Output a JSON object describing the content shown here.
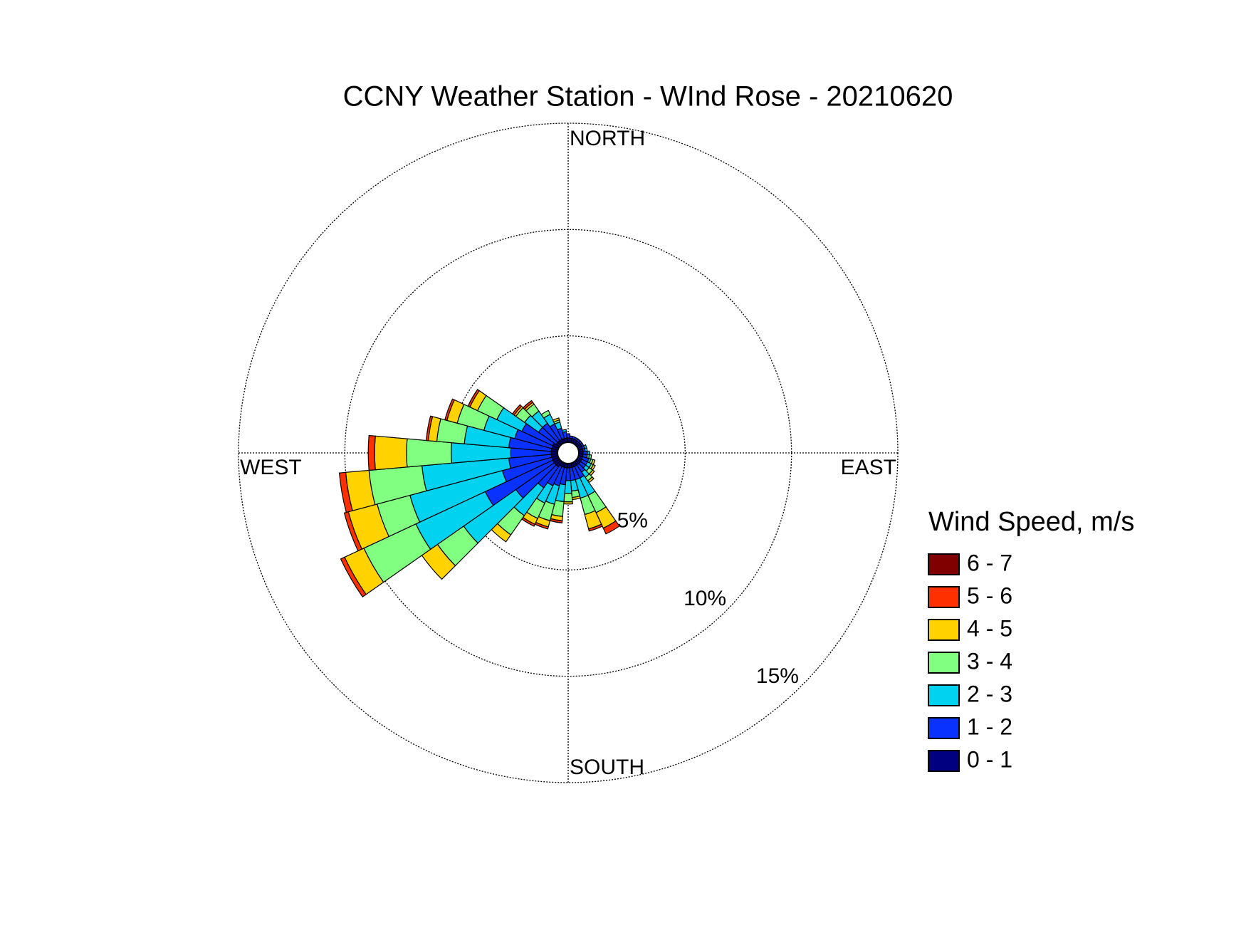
{
  "chart_data": {
    "type": "windrose",
    "title": "CCNY Weather Station - WInd Rose - 20210620",
    "direction_labels": {
      "north": "NORTH",
      "east": "EAST",
      "south": "SOUTH",
      "west": "WEST"
    },
    "legend_title": "Wind Speed, m/s",
    "theta": [
      0,
      10,
      20,
      30,
      40,
      50,
      60,
      70,
      80,
      90,
      100,
      110,
      120,
      130,
      140,
      150,
      160,
      170,
      180,
      190,
      200,
      210,
      220,
      230,
      240,
      250,
      260,
      270,
      280,
      290,
      300,
      310,
      320,
      330,
      340,
      350
    ],
    "rlim": [
      0,
      15
    ],
    "rticks": [
      {
        "value": 5,
        "label": "5%"
      },
      {
        "value": 10,
        "label": "10%"
      },
      {
        "value": 15,
        "label": "15%"
      }
    ],
    "grid": true,
    "series": [
      {
        "name": "0 - 1",
        "color": "#000080",
        "values": [
          0.2,
          0.2,
          0.2,
          0.2,
          0.2,
          0.2,
          0.2,
          0.2,
          0.2,
          0.2,
          0.2,
          0.2,
          0.2,
          0.2,
          0.2,
          0.2,
          0.2,
          0.2,
          0.2,
          0.2,
          0.2,
          0.2,
          0.3,
          0.3,
          0.3,
          0.3,
          0.3,
          0.3,
          0.3,
          0.3,
          0.3,
          0.2,
          0.2,
          0.2,
          0.2,
          0.2
        ]
      },
      {
        "name": "1 - 2",
        "color": "#0a32ff",
        "values": [
          0.2,
          0.1,
          0.1,
          0.1,
          0.1,
          0.1,
          0.1,
          0.1,
          0.1,
          0.2,
          0.2,
          0.3,
          0.3,
          0.3,
          0.4,
          0.6,
          0.6,
          0.6,
          0.6,
          0.8,
          0.9,
          1.0,
          1.2,
          2.2,
          3.5,
          2.4,
          2.0,
          1.9,
          2.0,
          1.8,
          1.6,
          1.0,
          1.0,
          0.8,
          0.5,
          0.3
        ]
      },
      {
        "name": "2 - 3",
        "color": "#00d2f0",
        "values": [
          0,
          0,
          0,
          0,
          0,
          0,
          0,
          0.1,
          0.1,
          0.1,
          0.1,
          0.1,
          0.2,
          0.2,
          0.3,
          0.9,
          0.9,
          0.5,
          0.6,
          0.8,
          0.9,
          0.9,
          1.6,
          3.0,
          3.6,
          4.5,
          4.1,
          2.8,
          2.1,
          1.5,
          1.3,
          0.8,
          0.7,
          0.5,
          0.3,
          0.1
        ]
      },
      {
        "name": "3 - 4",
        "color": "#80ff80",
        "values": [
          0,
          0,
          0,
          0,
          0,
          0,
          0,
          0,
          0,
          0,
          0.1,
          0.1,
          0.1,
          0.2,
          0.2,
          0.9,
          0.8,
          0.3,
          0.4,
          0.7,
          0.8,
          0.8,
          1.1,
          1.5,
          2.7,
          1.6,
          2.5,
          2.1,
          1.3,
          1.3,
          1.0,
          0.5,
          0.4,
          0.2,
          0.1,
          0
        ]
      },
      {
        "name": "4 - 5",
        "color": "#ffd200",
        "values": [
          0,
          0,
          0,
          0,
          0,
          0,
          0,
          0,
          0,
          0,
          0,
          0.1,
          0.1,
          0.1,
          0.1,
          0.8,
          0.7,
          0.1,
          0.1,
          0.2,
          0.3,
          0.3,
          0.4,
          0.9,
          1.0,
          1.4,
          1.1,
          1.5,
          0.4,
          0.5,
          0.4,
          0.1,
          0.1,
          0,
          0.1,
          0
        ]
      },
      {
        "name": "5 - 6",
        "color": "#ff3000",
        "values": [
          0,
          0,
          0,
          0,
          0,
          0,
          0,
          0,
          0,
          0,
          0,
          0,
          0,
          0,
          0,
          0.3,
          0.1,
          0,
          0,
          0.1,
          0.1,
          0.1,
          0,
          0,
          0.2,
          0.2,
          0.3,
          0.3,
          0.1,
          0.1,
          0.1,
          0.1,
          0.1,
          0,
          0,
          0
        ]
      },
      {
        "name": "6 - 7",
        "color": "#800000",
        "values": [
          0,
          0,
          0,
          0,
          0,
          0,
          0,
          0,
          0,
          0,
          0,
          0,
          0,
          0,
          0,
          0,
          0,
          0,
          0,
          0,
          0,
          0,
          0,
          0,
          0,
          0,
          0,
          0,
          0,
          0,
          0,
          0,
          0,
          0,
          0,
          0
        ]
      }
    ]
  }
}
